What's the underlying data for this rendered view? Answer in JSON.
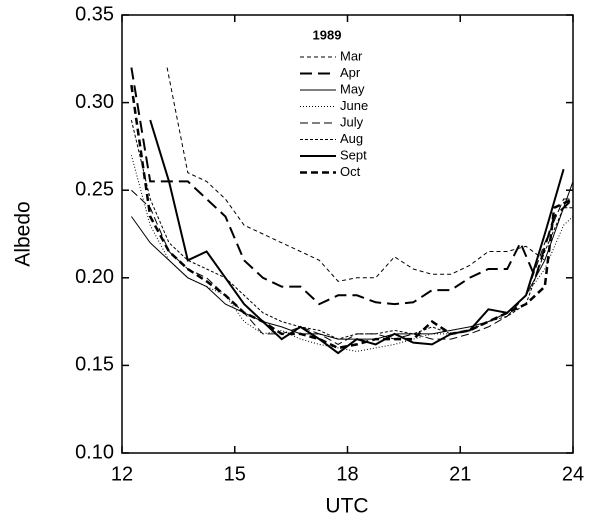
{
  "chart_data": {
    "type": "line",
    "xlabel": "UTC",
    "ylabel": "Albedo",
    "legend_title": "1989",
    "xlim": [
      12,
      24
    ],
    "ylim": [
      0.1,
      0.35
    ],
    "xticks": [
      12,
      15,
      18,
      21,
      24
    ],
    "yticks": [
      {
        "value": 0.1,
        "label": "0.10"
      },
      0.15,
      {
        "value": 0.2,
        "label": "0.20"
      },
      0.25,
      {
        "value": 0.3,
        "label": "0.30"
      },
      0.35
    ],
    "legend": "upper center",
    "series": [
      {
        "name": "Mar",
        "color": "#000000",
        "width": 1,
        "dash": "4 3",
        "x": [
          13.2,
          13.75,
          14.25,
          14.75,
          15.25,
          15.75,
          16.25,
          16.75,
          17.25,
          17.75,
          18.25,
          18.75,
          19.25,
          19.75,
          20.25,
          20.75,
          21.25,
          21.75,
          22.25,
          22.75,
          23.25
        ],
        "values": [
          0.32,
          0.26,
          0.255,
          0.245,
          0.23,
          0.225,
          0.22,
          0.215,
          0.21,
          0.198,
          0.2,
          0.2,
          0.212,
          0.205,
          0.202,
          0.202,
          0.207,
          0.215,
          0.215,
          0.218,
          0.21
        ]
      },
      {
        "name": "Apr",
        "color": "#000000",
        "width": 2,
        "dash": "12 6",
        "x": [
          12.25,
          12.75,
          13.25,
          13.75,
          14.25,
          14.75,
          15.25,
          15.75,
          16.25,
          16.75,
          17.25,
          17.75,
          18.25,
          18.75,
          19.25,
          19.75,
          20.25,
          20.75,
          21.25,
          21.75,
          22.25,
          22.6,
          23,
          23.5,
          24
        ],
        "values": [
          0.32,
          0.255,
          0.255,
          0.255,
          0.245,
          0.235,
          0.21,
          0.2,
          0.195,
          0.195,
          0.185,
          0.19,
          0.19,
          0.186,
          0.185,
          0.186,
          0.193,
          0.193,
          0.2,
          0.205,
          0.205,
          0.22,
          0.2,
          0.235,
          0.245
        ]
      },
      {
        "name": "May",
        "color": "#000000",
        "width": 1,
        "dash": "",
        "x": [
          12.25,
          12.75,
          13.25,
          13.75,
          14.25,
          14.75,
          15.25,
          15.75,
          16.25,
          16.75,
          17.25,
          17.75,
          18.25,
          18.75,
          19.25,
          19.75,
          20.25,
          20.75,
          21.25,
          21.75,
          22.25,
          22.75,
          23.25,
          23.75,
          24
        ],
        "values": [
          0.235,
          0.22,
          0.21,
          0.2,
          0.195,
          0.185,
          0.18,
          0.175,
          0.172,
          0.168,
          0.168,
          0.165,
          0.165,
          0.165,
          0.168,
          0.168,
          0.168,
          0.17,
          0.172,
          0.175,
          0.18,
          0.19,
          0.21,
          0.24,
          0.255
        ]
      },
      {
        "name": "June",
        "color": "#000000",
        "width": 1,
        "dash": "1 2",
        "x": [
          12.25,
          12.75,
          13.25,
          13.75,
          14.25,
          14.75,
          15.25,
          15.75,
          16.25,
          16.75,
          17.25,
          17.75,
          18.25,
          18.75,
          19.25,
          19.75,
          20.25,
          20.75,
          21.25,
          21.75,
          22.25,
          22.75,
          23.25,
          23.75,
          24
        ],
        "values": [
          0.27,
          0.23,
          0.21,
          0.2,
          0.195,
          0.19,
          0.175,
          0.168,
          0.17,
          0.165,
          0.162,
          0.16,
          0.158,
          0.16,
          0.162,
          0.165,
          0.168,
          0.168,
          0.17,
          0.175,
          0.18,
          0.19,
          0.205,
          0.23,
          0.235
        ]
      },
      {
        "name": "July",
        "color": "#000000",
        "width": 1,
        "dash": "8 4",
        "x": [
          12.25,
          12.75,
          13.25,
          13.75,
          14.25,
          14.75,
          15.25,
          15.75,
          16.25,
          16.75,
          17.25,
          17.75,
          18.25,
          18.75,
          19.25,
          19.75,
          20.25,
          20.75,
          21.25,
          21.75,
          22.25,
          22.75,
          23.25,
          23.75,
          24
        ],
        "values": [
          0.25,
          0.24,
          0.215,
          0.205,
          0.2,
          0.19,
          0.18,
          0.168,
          0.168,
          0.172,
          0.168,
          0.162,
          0.168,
          0.168,
          0.165,
          0.168,
          0.165,
          0.165,
          0.168,
          0.172,
          0.178,
          0.19,
          0.22,
          0.245,
          0.245
        ]
      },
      {
        "name": "Aug",
        "color": "#000000",
        "width": 1,
        "dash": "3 2",
        "x": [
          12.25,
          12.75,
          13.25,
          13.75,
          14.25,
          14.75,
          15.25,
          15.75,
          16.25,
          16.75,
          17.25,
          17.75,
          18.25,
          18.75,
          19.25,
          19.75,
          20.25,
          20.75,
          21.25,
          21.75,
          22.25,
          22.75,
          23.25,
          23.75,
          24
        ],
        "values": [
          0.29,
          0.245,
          0.22,
          0.21,
          0.205,
          0.2,
          0.19,
          0.18,
          0.175,
          0.172,
          0.17,
          0.165,
          0.168,
          0.168,
          0.17,
          0.168,
          0.172,
          0.168,
          0.17,
          0.175,
          0.178,
          0.185,
          0.215,
          0.24,
          0.24
        ]
      },
      {
        "name": "Sept",
        "color": "#000000",
        "width": 2,
        "dash": "",
        "x": [
          12.75,
          13.25,
          13.75,
          14.25,
          14.75,
          15.25,
          15.75,
          16.25,
          16.75,
          17.25,
          17.75,
          18.25,
          18.75,
          19.25,
          19.75,
          20.25,
          20.75,
          21.25,
          21.75,
          22.25,
          22.75,
          23.25,
          23.75
        ],
        "values": [
          0.29,
          0.255,
          0.21,
          0.215,
          0.2,
          0.185,
          0.175,
          0.165,
          0.172,
          0.165,
          0.157,
          0.165,
          0.162,
          0.168,
          0.163,
          0.162,
          0.168,
          0.17,
          0.182,
          0.18,
          0.19,
          0.225,
          0.262
        ]
      },
      {
        "name": "Oct",
        "color": "#000000",
        "width": 2.5,
        "dash": "7 4",
        "x": [
          12.25,
          12.75,
          13.25,
          13.75,
          14.25,
          14.75,
          15.25,
          15.75,
          16.25,
          16.75,
          17.25,
          17.75,
          18.25,
          18.75,
          19.25,
          19.75,
          20.25,
          20.75,
          21.25,
          21.75,
          22.25,
          22.75,
          23.25,
          23.5,
          24
        ],
        "values": [
          0.31,
          0.235,
          0.215,
          0.205,
          0.198,
          0.19,
          0.18,
          0.175,
          0.168,
          0.168,
          0.165,
          0.16,
          0.162,
          0.165,
          0.165,
          0.165,
          0.175,
          0.168,
          0.17,
          0.175,
          0.18,
          0.185,
          0.195,
          0.24,
          0.245
        ]
      }
    ]
  }
}
